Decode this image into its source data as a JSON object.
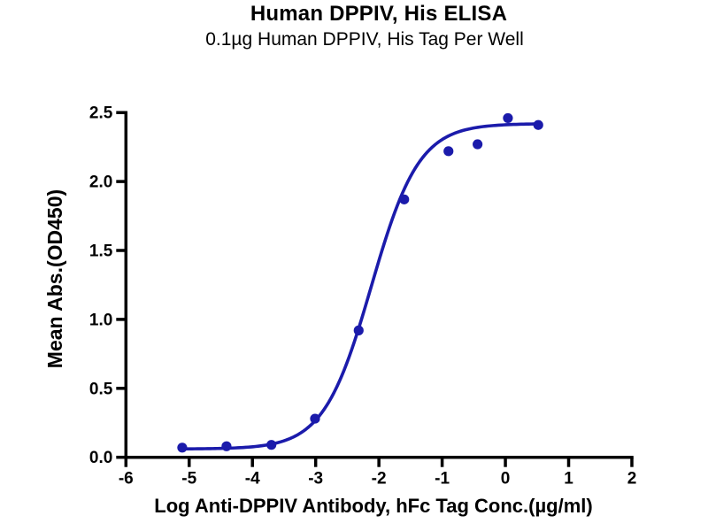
{
  "page": {
    "background": "#ffffff"
  },
  "chart_data": {
    "type": "scatter",
    "title": "Human DPPIV, His ELISA",
    "subtitle": "0.1µg Human DPPIV, His Tag Per Well",
    "xlabel": "Log Anti-DPPIV Antibody, hFc Tag Conc.(µg/ml)",
    "ylabel": "Mean Abs.(OD450)",
    "xlim": [
      -6,
      2
    ],
    "ylim": [
      0,
      2.5
    ],
    "x_ticks": [
      -6,
      -5,
      -4,
      -3,
      -2,
      -1,
      0,
      1,
      2
    ],
    "x_tick_labels": [
      "-6",
      "-5",
      "-4",
      "-3",
      "-2",
      "-1",
      "0",
      "1",
      "2"
    ],
    "y_ticks": [
      0,
      0.5,
      1,
      1.5,
      2,
      2.5
    ],
    "y_tick_labels": [
      "0.0",
      "0.5",
      "1.0",
      "1.5",
      "2.0",
      "2.5"
    ],
    "grid": false,
    "legend": null,
    "axis_color": "#000000",
    "series_color": "#1b1bab",
    "points": {
      "x": [
        -5.11,
        -4.41,
        -3.7,
        -3.01,
        -2.32,
        -1.6,
        -0.9,
        -0.44,
        0.04,
        0.52
      ],
      "y": [
        0.07,
        0.08,
        0.09,
        0.28,
        0.92,
        1.87,
        2.22,
        2.27,
        2.46,
        2.41
      ]
    },
    "fit_curve": {
      "model": "4PL",
      "bottom": 0.06,
      "top": 2.42,
      "log_ec50": -2.12,
      "hill": 1.15,
      "x_start": -5.11,
      "x_end": 0.52
    }
  }
}
